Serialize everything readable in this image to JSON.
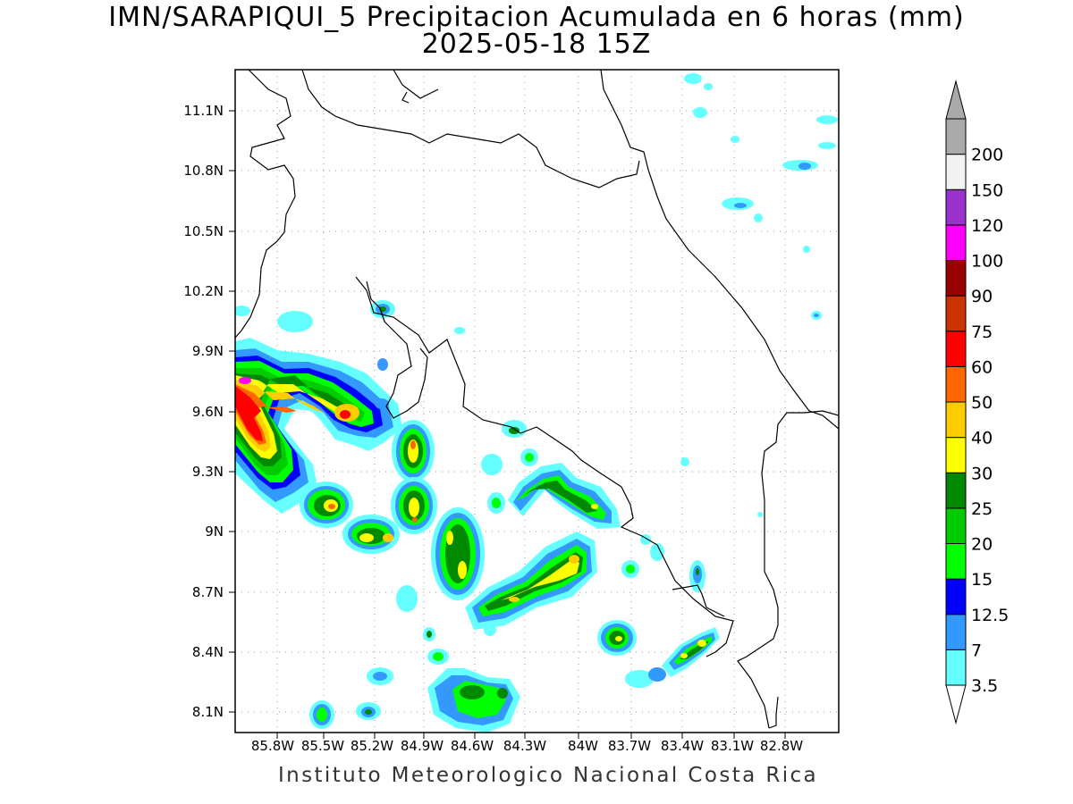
{
  "header": {
    "title": "IMN/SARAPIQUI_5 Precipitacion Acumulada en 6 horas (mm)",
    "subtitle": "2025-05-18 15Z"
  },
  "footer": {
    "credit": "Instituto Meteorologico Nacional Costa Rica"
  },
  "map": {
    "lat_labels": [
      "11.1N",
      "10.8N",
      "10.5N",
      "10.2N",
      "9.9N",
      "9.6N",
      "9.3N",
      "9N",
      "8.7N",
      "8.4N",
      "8.1N"
    ],
    "lon_labels": [
      "85.8W",
      "85.5W",
      "85.2W",
      "84.9W",
      "84.6W",
      "84.3W",
      "84W",
      "83.7W",
      "83.4W",
      "83.1W",
      "82.8W"
    ],
    "grid": "dotted"
  },
  "legend": {
    "levels": [
      "3.5",
      "7",
      "12.5",
      "15",
      "20",
      "25",
      "30",
      "40",
      "50",
      "60",
      "75",
      "90",
      "100",
      "120",
      "150",
      "200"
    ],
    "colors": [
      "#66ffff",
      "#3399ff",
      "#0000ff",
      "#00ff00",
      "#00cc00",
      "#008800",
      "#ffff00",
      "#ffcc00",
      "#ff6600",
      "#ff0000",
      "#cc3300",
      "#990000",
      "#ff00ff",
      "#9933cc",
      "#f2f2f2",
      "#aaaaaa"
    ]
  }
}
